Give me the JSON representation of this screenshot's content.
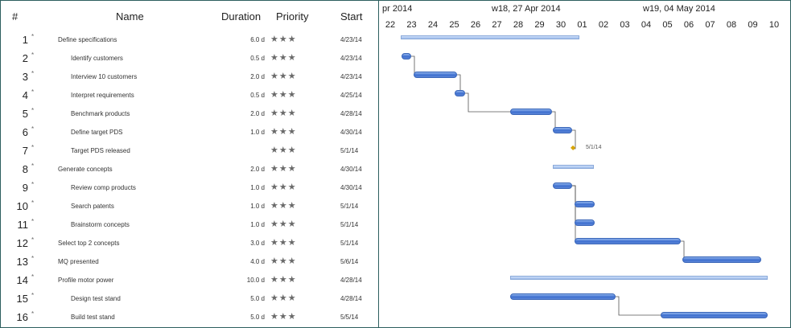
{
  "columns": {
    "num": "#",
    "name": "Name",
    "duration": "Duration",
    "priority": "Priority",
    "start": "Start"
  },
  "timeline": {
    "weeks": [
      "pr 2014",
      "w18, 27 Apr 2014",
      "w19, 04 May 2014"
    ],
    "days": [
      "22",
      "23",
      "24",
      "25",
      "26",
      "27",
      "28",
      "29",
      "30",
      "01",
      "02",
      "03",
      "04",
      "05",
      "06",
      "07",
      "08",
      "09",
      "10"
    ]
  },
  "tasks": [
    {
      "num": "1",
      "name": "Define specifications",
      "duration": "6.0 d",
      "priority": "★★★",
      "start": "4/23/14"
    },
    {
      "num": "2",
      "name": "Identify customers",
      "duration": "0.5 d",
      "priority": "★★★",
      "start": "4/23/14"
    },
    {
      "num": "3",
      "name": "Interview 10 customers",
      "duration": "2.0 d",
      "priority": "★★★",
      "start": "4/23/14"
    },
    {
      "num": "4",
      "name": "Interpret requirements",
      "duration": "0.5 d",
      "priority": "★★★",
      "start": "4/25/14"
    },
    {
      "num": "5",
      "name": "Benchmark products",
      "duration": "2.0 d",
      "priority": "★★★",
      "start": "4/28/14"
    },
    {
      "num": "6",
      "name": "Define target PDS",
      "duration": "1.0 d",
      "priority": "★★★",
      "start": "4/30/14"
    },
    {
      "num": "7",
      "name": "Target PDS released",
      "duration": "",
      "priority": "★★★",
      "start": "5/1/14"
    },
    {
      "num": "8",
      "name": "Generate concepts",
      "duration": "2.0 d",
      "priority": "★★★",
      "start": "4/30/14"
    },
    {
      "num": "9",
      "name": "Review comp products",
      "duration": "1.0 d",
      "priority": "★★★",
      "start": "4/30/14"
    },
    {
      "num": "10",
      "name": "Search patents",
      "duration": "1.0 d",
      "priority": "★★★",
      "start": "5/1/14"
    },
    {
      "num": "11",
      "name": "Brainstorm concepts",
      "duration": "1.0 d",
      "priority": "★★★",
      "start": "5/1/14"
    },
    {
      "num": "12",
      "name": "Select top 2 concepts",
      "duration": "3.0 d",
      "priority": "★★★",
      "start": "5/1/14"
    },
    {
      "num": "13",
      "name": "MQ presented",
      "duration": "4.0 d",
      "priority": "★★★",
      "start": "5/6/14"
    },
    {
      "num": "14",
      "name": "Profile motor power",
      "duration": "10.0 d",
      "priority": "★★★",
      "start": "4/28/14"
    },
    {
      "num": "15",
      "name": "Design test stand",
      "duration": "5.0 d",
      "priority": "★★★",
      "start": "4/28/14"
    },
    {
      "num": "16",
      "name": "Build test stand",
      "duration": "5.0 d",
      "priority": "★★★",
      "start": "5/5/14"
    }
  ],
  "milestone_label": "5/1/14"
}
